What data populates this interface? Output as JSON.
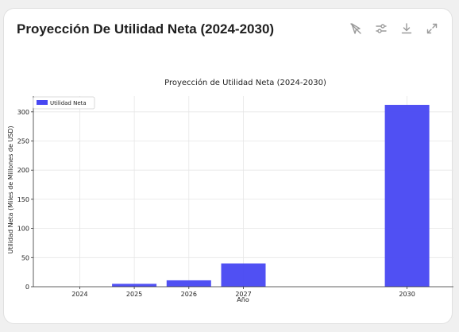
{
  "card": {
    "title": "Proyección De Utilidad Neta (2024-2030)"
  },
  "toolbar": {
    "icons": [
      "pointer-off-icon",
      "adjust-icon",
      "download-icon",
      "expand-icon"
    ]
  },
  "chart_data": {
    "type": "bar",
    "title": "Proyección de Utilidad Neta (2024-2030)",
    "xlabel": "Año",
    "ylabel": "Utilidad Neta (Miles de Millones de USD)",
    "legend": {
      "label": "Utilidad Neta",
      "placement": "top-left"
    },
    "bar_color": "#4747f2",
    "grid": true,
    "ylim": [
      0,
      320
    ],
    "yticks": [
      0,
      50,
      100,
      150,
      200,
      250,
      300
    ],
    "x": [
      2024,
      2025,
      2026,
      2027,
      2030
    ],
    "categories": [
      "2024",
      "2025",
      "2026",
      "2027",
      "2030"
    ],
    "values": [
      0,
      5,
      11,
      40,
      312
    ]
  }
}
